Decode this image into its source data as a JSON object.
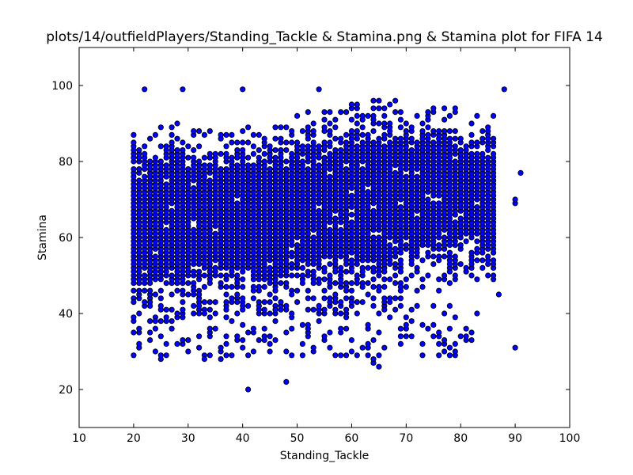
{
  "chart_data": {
    "type": "scatter",
    "title": "plots/14/outfieldPlayers/Standing_Tackle & Stamina.png & Stamina plot for FIFA 14",
    "xlabel": "Standing_Tackle",
    "ylabel": "Stamina",
    "xlim": [
      10,
      100
    ],
    "ylim": [
      10,
      110
    ],
    "xticks": [
      10,
      20,
      30,
      40,
      50,
      60,
      70,
      80,
      90,
      100
    ],
    "yticks": [
      20,
      40,
      60,
      80,
      100
    ],
    "grid": false,
    "marker_color": "#0000ff",
    "marker_edge_color": "#000000",
    "outliers": [
      [
        22,
        99
      ],
      [
        29,
        99
      ],
      [
        40,
        99
      ],
      [
        54,
        99
      ],
      [
        88,
        99
      ],
      [
        41,
        20
      ],
      [
        48,
        22
      ],
      [
        91,
        77
      ],
      [
        90,
        31
      ],
      [
        65,
        26
      ],
      [
        64,
        27
      ],
      [
        64,
        28
      ],
      [
        25,
        28
      ],
      [
        25,
        29
      ],
      [
        33,
        28
      ],
      [
        36,
        28
      ],
      [
        87,
        45
      ],
      [
        83,
        40
      ],
      [
        85,
        55
      ],
      [
        86,
        54
      ],
      [
        90,
        69
      ],
      [
        90,
        70
      ]
    ],
    "dense_regions": [
      {
        "x_range": [
          20,
          30
        ],
        "y_range": [
          44,
          86
        ]
      },
      {
        "x_range": [
          30,
          40
        ],
        "y_range": [
          46,
          84
        ]
      },
      {
        "x_range": [
          40,
          50
        ],
        "y_range": [
          46,
          85
        ]
      },
      {
        "x_range": [
          50,
          60
        ],
        "y_range": [
          46,
          89
        ]
      },
      {
        "x_range": [
          60,
          70
        ],
        "y_range": [
          48,
          92
        ]
      },
      {
        "x_range": [
          70,
          80
        ],
        "y_range": [
          52,
          90
        ]
      },
      {
        "x_range": [
          80,
          87
        ],
        "y_range": [
          55,
          88
        ]
      }
    ],
    "sparse_low_band": {
      "x_range": [
        20,
        82
      ],
      "y_range": [
        29,
        36
      ]
    }
  }
}
